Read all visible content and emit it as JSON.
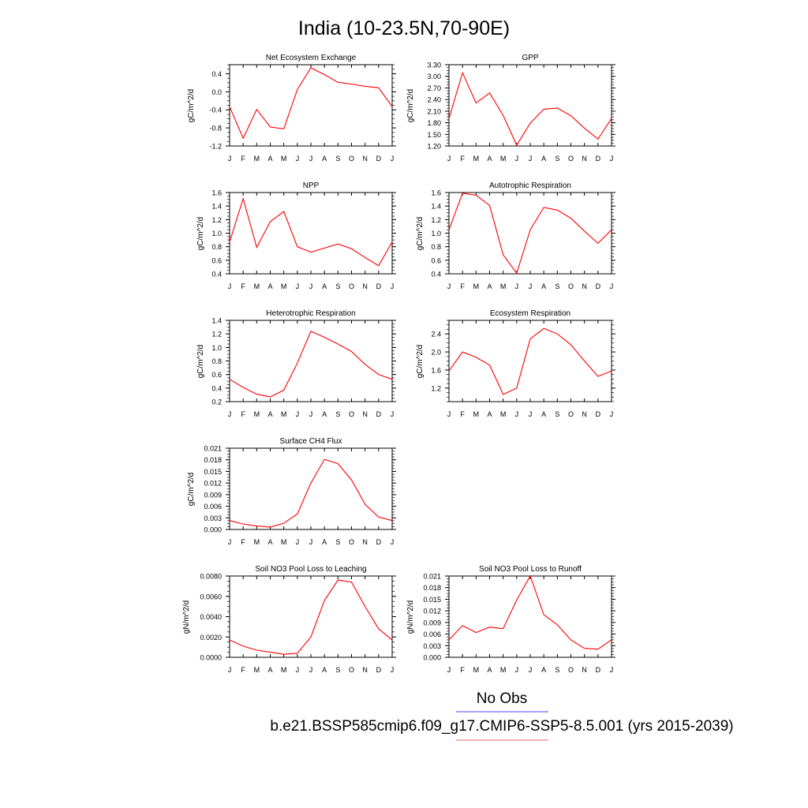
{
  "figure": {
    "title": "India (10-23.5N,70-90E)",
    "months": [
      "J",
      "F",
      "M",
      "A",
      "M",
      "J",
      "J",
      "A",
      "S",
      "O",
      "N",
      "D",
      "J"
    ]
  },
  "legend": {
    "obs_label": "No Obs",
    "obs_color": "#6b6bef",
    "model_label": "b.e21.BSSP585cmip6.f09_g17.CMIP6-SSP5-8.5.001 (yrs 2015-2039)",
    "model_color": "#f08080"
  },
  "series_color": "#ff0000",
  "chart_data": [
    {
      "type": "line",
      "title": "Net Ecosystem Exchange",
      "ylabel": "gC/m^2/d",
      "ylim": [
        -1.2,
        0.6
      ],
      "yticks": [
        -1.2,
        -0.8,
        -0.4,
        0.0,
        0.4
      ],
      "ytick_labels": [
        "-1.2",
        "-0.8",
        "-0.4",
        "0.0",
        "0.4"
      ],
      "categories": [
        "J",
        "F",
        "M",
        "A",
        "M",
        "J",
        "J",
        "A",
        "S",
        "O",
        "N",
        "D",
        "J"
      ],
      "values": [
        -0.33,
        -1.03,
        -0.39,
        -0.78,
        -0.82,
        0.05,
        0.53,
        0.38,
        0.21,
        0.17,
        0.12,
        0.09,
        -0.33
      ]
    },
    {
      "type": "line",
      "title": "GPP",
      "ylabel": "gC/m^2/d",
      "ylim": [
        1.2,
        3.3
      ],
      "yticks": [
        1.2,
        1.5,
        1.8,
        2.1,
        2.4,
        2.7,
        3.0,
        3.3
      ],
      "ytick_labels": [
        "1.20",
        "1.50",
        "1.80",
        "2.10",
        "2.40",
        "2.70",
        "3.00",
        "3.30"
      ],
      "categories": [
        "J",
        "F",
        "M",
        "A",
        "M",
        "J",
        "J",
        "A",
        "S",
        "O",
        "N",
        "D",
        "J"
      ],
      "values": [
        1.91,
        3.09,
        2.31,
        2.57,
        1.99,
        1.22,
        1.79,
        2.15,
        2.18,
        1.98,
        1.66,
        1.38,
        1.91
      ]
    },
    {
      "type": "line",
      "title": "NPP",
      "ylabel": "gC/m^2/d",
      "ylim": [
        0.4,
        1.6
      ],
      "yticks": [
        0.4,
        0.6,
        0.8,
        1.0,
        1.2,
        1.4,
        1.6
      ],
      "ytick_labels": [
        "0.4",
        "0.6",
        "0.8",
        "1.0",
        "1.2",
        "1.4",
        "1.6"
      ],
      "categories": [
        "J",
        "F",
        "M",
        "A",
        "M",
        "J",
        "J",
        "A",
        "S",
        "O",
        "N",
        "D",
        "J"
      ],
      "values": [
        0.87,
        1.51,
        0.79,
        1.17,
        1.32,
        0.8,
        0.72,
        0.78,
        0.84,
        0.77,
        0.64,
        0.52,
        0.87
      ]
    },
    {
      "type": "line",
      "title": "Autotrophic Respiration",
      "ylabel": "gC/m^2/d",
      "ylim": [
        0.4,
        1.6
      ],
      "yticks": [
        0.4,
        0.6,
        0.8,
        1.0,
        1.2,
        1.4,
        1.6
      ],
      "ytick_labels": [
        "0.4",
        "0.6",
        "0.8",
        "1.0",
        "1.2",
        "1.4",
        "1.6"
      ],
      "categories": [
        "J",
        "F",
        "M",
        "A",
        "M",
        "J",
        "J",
        "A",
        "S",
        "O",
        "N",
        "D",
        "J"
      ],
      "values": [
        1.05,
        1.59,
        1.56,
        1.41,
        0.68,
        0.41,
        1.05,
        1.38,
        1.34,
        1.22,
        1.03,
        0.85,
        1.05
      ]
    },
    {
      "type": "line",
      "title": "Heterotrophic Respiration",
      "ylabel": "gC/m^2/d",
      "ylim": [
        0.2,
        1.4
      ],
      "yticks": [
        0.2,
        0.4,
        0.6,
        0.8,
        1.0,
        1.2,
        1.4
      ],
      "ytick_labels": [
        "0.2",
        "0.4",
        "0.6",
        "0.8",
        "1.0",
        "1.2",
        "1.4"
      ],
      "categories": [
        "J",
        "F",
        "M",
        "A",
        "M",
        "J",
        "J",
        "A",
        "S",
        "O",
        "N",
        "D",
        "J"
      ],
      "values": [
        0.53,
        0.41,
        0.31,
        0.27,
        0.37,
        0.77,
        1.24,
        1.15,
        1.05,
        0.94,
        0.75,
        0.6,
        0.53
      ]
    },
    {
      "type": "line",
      "title": "Ecosystem Respiration",
      "ylabel": "gC/m^2/d",
      "ylim": [
        0.9,
        2.7
      ],
      "yticks": [
        1.2,
        1.6,
        2.0,
        2.4
      ],
      "ytick_labels": [
        "1.2",
        "1.6",
        "2.0",
        "2.4"
      ],
      "categories": [
        "J",
        "F",
        "M",
        "A",
        "M",
        "J",
        "J",
        "A",
        "S",
        "O",
        "N",
        "D",
        "J"
      ],
      "values": [
        1.58,
        2.0,
        1.88,
        1.71,
        1.06,
        1.2,
        2.29,
        2.52,
        2.4,
        2.16,
        1.8,
        1.46,
        1.58
      ]
    },
    {
      "type": "line",
      "title": "Surface CH4 Flux",
      "ylabel": "gC/m^2/d",
      "ylim": [
        0.0,
        0.021
      ],
      "yticks": [
        0.0,
        0.003,
        0.006,
        0.009,
        0.012,
        0.015,
        0.018,
        0.021
      ],
      "ytick_labels": [
        "0.000",
        "0.003",
        "0.006",
        "0.009",
        "0.012",
        "0.015",
        "0.018",
        "0.021"
      ],
      "categories": [
        "J",
        "F",
        "M",
        "A",
        "M",
        "J",
        "J",
        "A",
        "S",
        "O",
        "N",
        "D",
        "J"
      ],
      "values": [
        0.0023,
        0.0014,
        0.0009,
        0.0006,
        0.0016,
        0.004,
        0.012,
        0.0181,
        0.017,
        0.0128,
        0.0065,
        0.0032,
        0.0023
      ]
    },
    {
      "type": "line",
      "title": "Soil NO3 Pool Loss to Leaching",
      "ylabel": "gN/m^2/d",
      "ylim": [
        0.0,
        0.008
      ],
      "yticks": [
        0.0,
        0.002,
        0.004,
        0.006,
        0.008
      ],
      "ytick_labels": [
        "0.0000",
        "0.0020",
        "0.0040",
        "0.0060",
        "0.0080"
      ],
      "categories": [
        "J",
        "F",
        "M",
        "A",
        "M",
        "J",
        "J",
        "A",
        "S",
        "O",
        "N",
        "D",
        "J"
      ],
      "values": [
        0.0017,
        0.0011,
        0.0007,
        0.0005,
        0.0003,
        0.0004,
        0.002,
        0.0056,
        0.0076,
        0.0074,
        0.005,
        0.0028,
        0.0017
      ]
    },
    {
      "type": "line",
      "title": "Soil NO3 Pool Loss to Runoff",
      "ylabel": "gN/m^2/d",
      "ylim": [
        0.0,
        0.021
      ],
      "yticks": [
        0.0,
        0.003,
        0.006,
        0.009,
        0.012,
        0.015,
        0.018,
        0.021
      ],
      "ytick_labels": [
        "0.000",
        "0.003",
        "0.006",
        "0.009",
        "0.012",
        "0.015",
        "0.018",
        "0.021"
      ],
      "categories": [
        "J",
        "F",
        "M",
        "A",
        "M",
        "J",
        "J",
        "A",
        "S",
        "O",
        "N",
        "D",
        "J"
      ],
      "values": [
        0.0045,
        0.0082,
        0.0064,
        0.0078,
        0.0074,
        0.0148,
        0.021,
        0.011,
        0.0084,
        0.0045,
        0.0023,
        0.0021,
        0.0045
      ]
    }
  ]
}
